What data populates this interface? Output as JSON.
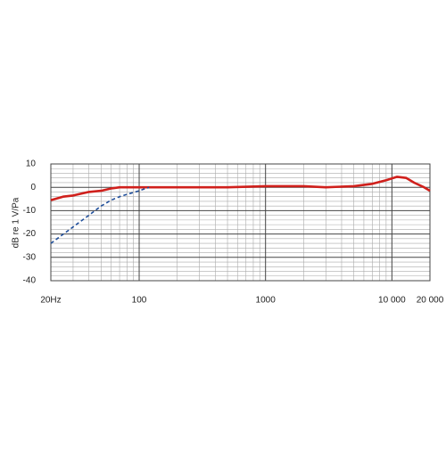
{
  "chart_data": {
    "type": "line",
    "log_x": true,
    "ylabel": "dB re 1 V/Pa",
    "xlim": [
      20,
      20000
    ],
    "ylim": [
      -40,
      10
    ],
    "xticks": [
      {
        "value": 20,
        "label": "20Hz"
      },
      100,
      1000,
      {
        "value": 10000,
        "label": "10 000"
      },
      {
        "value": 20000,
        "label": "20 000"
      }
    ],
    "yticks": [
      10,
      0,
      -10,
      -20,
      -30,
      -40
    ],
    "x_minor_ticks": [
      30,
      40,
      50,
      60,
      70,
      80,
      90,
      200,
      300,
      400,
      500,
      600,
      700,
      800,
      900,
      2000,
      3000,
      4000,
      5000,
      6000,
      7000,
      8000,
      9000
    ],
    "y_minor_ticks": [
      8,
      6,
      4,
      2,
      -2,
      -4,
      -6,
      -8,
      -12,
      -14,
      -16,
      -18,
      -22,
      -24,
      -26,
      -28,
      -32,
      -34,
      -36,
      -38
    ],
    "grid": true,
    "series": [
      {
        "color": "#d0201c",
        "dash": false,
        "x": [
          20,
          25,
          30,
          40,
          50,
          60,
          70,
          100,
          200,
          500,
          1000,
          2000,
          3000,
          5000,
          7000,
          9000,
          11000,
          13000,
          15000,
          18000,
          20000
        ],
        "values": [
          -5.5,
          -4,
          -3.5,
          -2,
          -1.5,
          -0.5,
          0,
          0,
          0,
          0,
          0.5,
          0.5,
          0,
          0.5,
          1.5,
          3,
          4.5,
          4,
          2,
          0,
          -1.5
        ]
      },
      {
        "color": "#1f4e9a",
        "dash": true,
        "x": [
          20,
          30,
          40,
          50,
          60,
          70,
          80,
          100,
          120
        ],
        "values": [
          -24,
          -17,
          -12,
          -8,
          -5.5,
          -4,
          -3,
          -1.5,
          0
        ]
      }
    ]
  }
}
